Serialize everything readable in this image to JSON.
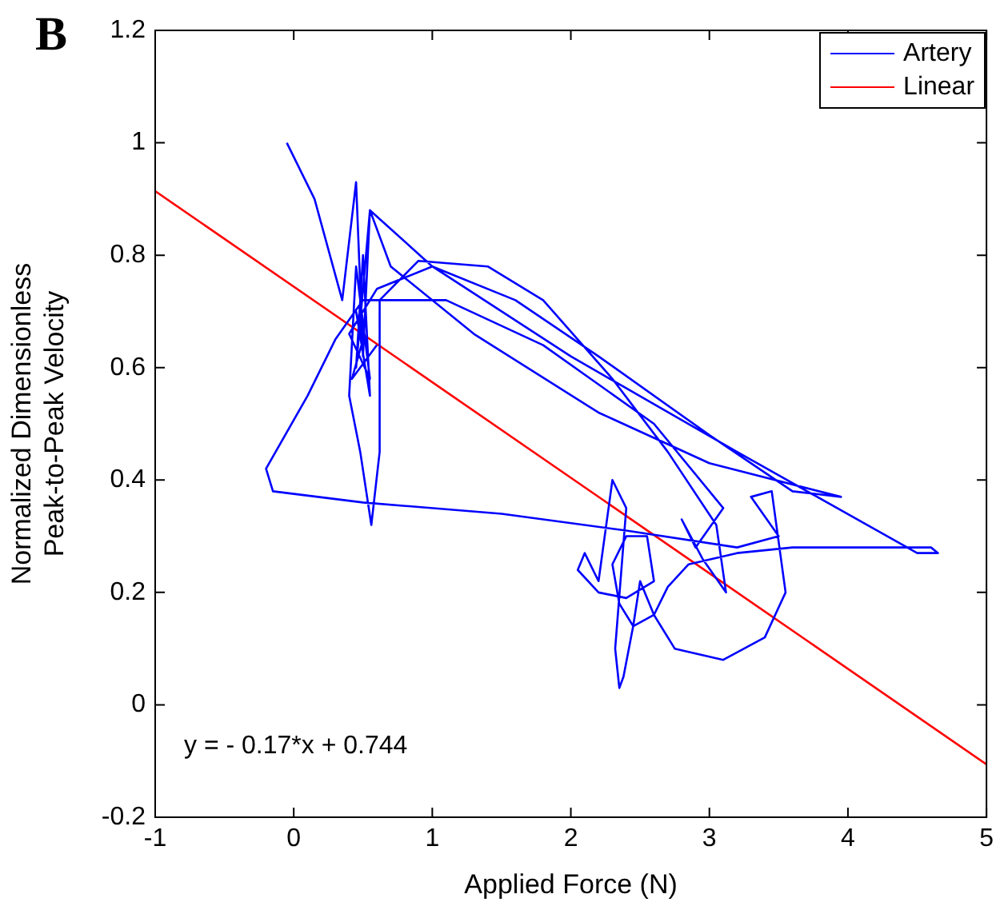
{
  "chart_data": {
    "type": "line",
    "title": "B",
    "xlabel": "Applied Force (N)",
    "ylabel": "Normalized Dimensionless\nPeak-to-Peak Velocity",
    "xlim": [
      -1,
      5
    ],
    "xticks": [
      -1,
      0,
      1,
      2,
      3,
      4,
      5
    ],
    "ylim": [
      -0.2,
      1.2
    ],
    "yticks": [
      -0.2,
      0,
      0.2,
      0.4,
      0.6,
      0.8,
      1,
      1.2
    ],
    "grid": false,
    "legend": "top right",
    "marker": "none",
    "line_style": "solid",
    "annotations": [
      "y = - 0.17*x + 0.744"
    ],
    "series": [
      {
        "name": "Artery",
        "color": "#0000ff",
        "x": [
          -0.05,
          0.15,
          0.35,
          0.45,
          0.5,
          0.55,
          0.7,
          1.3,
          2.2,
          3.0,
          3.95,
          3.6,
          3.0,
          2.2,
          1.6,
          1.0,
          0.6,
          0.4,
          0.55,
          0.45,
          0.4,
          0.48,
          0.56,
          0.62,
          0.62,
          0.9,
          1.4,
          1.8,
          2.3,
          2.7,
          3.05,
          3.12,
          2.95,
          2.8,
          2.9,
          3.1,
          2.6,
          1.8,
          1.1,
          0.5,
          0.3,
          0.1,
          -0.2,
          -0.15,
          0.5,
          1.5,
          2.4,
          3.2,
          3.5,
          3.3,
          3.45,
          3.55,
          3.4,
          3.1,
          2.75,
          2.6,
          2.5,
          2.45,
          2.38,
          2.35,
          2.32,
          2.4,
          2.3,
          2.2,
          2.1,
          2.05,
          2.2,
          2.4,
          2.6,
          2.55,
          2.4,
          2.3,
          2.35,
          2.45,
          2.6,
          2.7,
          2.85,
          3.2,
          3.6,
          4.0,
          4.6,
          4.65,
          4.5,
          3.2,
          2.0,
          1.0,
          0.55,
          0.45,
          0.5,
          0.55,
          0.45,
          0.5,
          0.42,
          0.6
        ],
        "values": [
          1.0,
          0.9,
          0.72,
          0.93,
          0.62,
          0.88,
          0.78,
          0.66,
          0.52,
          0.43,
          0.37,
          0.38,
          0.48,
          0.62,
          0.72,
          0.78,
          0.74,
          0.66,
          0.58,
          0.78,
          0.55,
          0.45,
          0.32,
          0.45,
          0.72,
          0.79,
          0.78,
          0.72,
          0.58,
          0.45,
          0.32,
          0.2,
          0.26,
          0.33,
          0.28,
          0.35,
          0.5,
          0.64,
          0.72,
          0.72,
          0.65,
          0.55,
          0.42,
          0.38,
          0.36,
          0.34,
          0.31,
          0.28,
          0.3,
          0.37,
          0.38,
          0.2,
          0.12,
          0.08,
          0.1,
          0.16,
          0.22,
          0.14,
          0.05,
          0.03,
          0.1,
          0.35,
          0.4,
          0.22,
          0.27,
          0.24,
          0.2,
          0.19,
          0.22,
          0.3,
          0.3,
          0.25,
          0.18,
          0.14,
          0.16,
          0.21,
          0.25,
          0.27,
          0.28,
          0.28,
          0.28,
          0.27,
          0.27,
          0.45,
          0.62,
          0.78,
          0.88,
          0.6,
          0.8,
          0.55,
          0.7,
          0.65,
          0.58,
          0.64
        ]
      },
      {
        "name": "Linear",
        "color": "#ff0000",
        "x": [
          -1,
          5
        ],
        "values": [
          0.914,
          -0.106
        ]
      }
    ]
  }
}
